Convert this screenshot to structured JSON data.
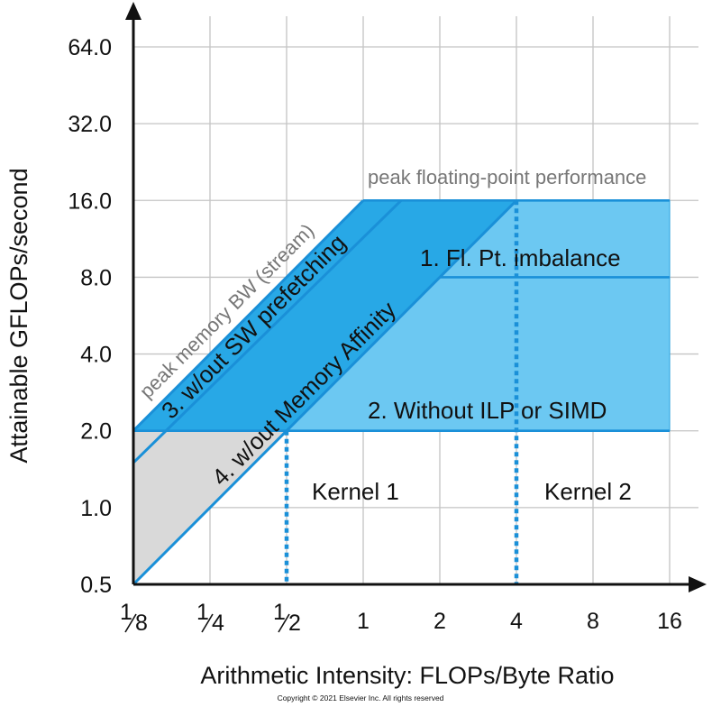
{
  "chart_data": {
    "type": "line",
    "xscale": "log2",
    "yscale": "log2",
    "xlim": [
      0.125,
      16
    ],
    "ylim": [
      0.5,
      64
    ],
    "grid": true,
    "xlabel": "Arithmetic Intensity: FLOPs/Byte Ratio",
    "ylabel": "Attainable GFLOPs/second",
    "x_ticks": [
      {
        "value": 0.125,
        "whole": "",
        "num": "1",
        "den": "8"
      },
      {
        "value": 0.25,
        "whole": "",
        "num": "1",
        "den": "4"
      },
      {
        "value": 0.5,
        "whole": "",
        "num": "1",
        "den": "2"
      },
      {
        "value": 1,
        "whole": "1",
        "num": "",
        "den": ""
      },
      {
        "value": 2,
        "whole": "2",
        "num": "",
        "den": ""
      },
      {
        "value": 4,
        "whole": "4",
        "num": "",
        "den": ""
      },
      {
        "value": 8,
        "whole": "8",
        "num": "",
        "den": ""
      },
      {
        "value": 16,
        "whole": "16",
        "num": "",
        "den": ""
      }
    ],
    "y_ticks": [
      {
        "value": 0.5,
        "label": "0.5"
      },
      {
        "value": 1,
        "label": "1.0"
      },
      {
        "value": 2,
        "label": "2.0"
      },
      {
        "value": 4,
        "label": "4.0"
      },
      {
        "value": 8,
        "label": "8.0"
      },
      {
        "value": 16,
        "label": "16.0"
      },
      {
        "value": 32,
        "label": "32.0"
      },
      {
        "value": 64,
        "label": "64.0"
      }
    ],
    "colors": {
      "band_dark": "#28a8e6",
      "band_light": "#6cc8f2",
      "line": "#1a90d8",
      "gray_region": "#d9d9d9",
      "gray_text": "#777777",
      "axis": "#111111",
      "grid": "#c4c4c4"
    },
    "ceilings": [
      {
        "label": "peak floating-point performance",
        "type": "horizontal",
        "y": 16,
        "x_from": 1,
        "x_to": 16
      },
      {
        "label": "1. Fl. Pt. imbalance",
        "type": "horizontal",
        "y": 8,
        "x_from": 2,
        "x_to": 16
      },
      {
        "label": "2. Without ILP or SIMD",
        "type": "horizontal",
        "y": 2,
        "x_from": 0.125,
        "x_to": 16
      }
    ],
    "bandwidth_lines": [
      {
        "label": "peak memory BW (stream)",
        "points": [
          [
            0.125,
            2
          ],
          [
            1,
            16
          ]
        ]
      },
      {
        "label": "3. w/out SW prefetching",
        "points": [
          [
            0.125,
            1.5
          ],
          [
            1.41,
            16
          ]
        ]
      },
      {
        "label": "4. w/out Memory Affinity",
        "points": [
          [
            0.125,
            0.5
          ],
          [
            4,
            16
          ]
        ]
      }
    ],
    "kernels": [
      {
        "label": "Kernel 1",
        "x": 0.5
      },
      {
        "label": "Kernel 2",
        "x": 4
      }
    ],
    "copyright": "Copyright © 2021 Elsevier Inc. All rights reserved"
  }
}
